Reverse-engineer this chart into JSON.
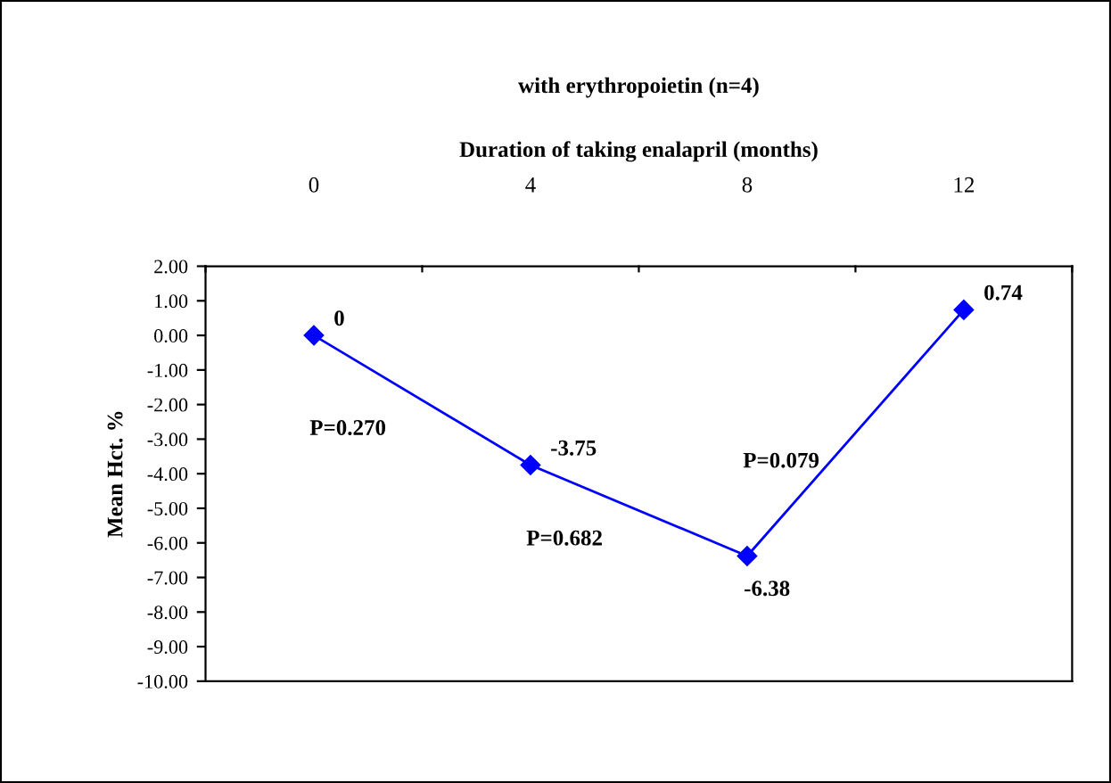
{
  "chart_data": {
    "type": "line",
    "title": "with erythropoietin (n=4)",
    "xlabel": "Duration of taking enalapril (months)",
    "ylabel": "Mean Hct. %",
    "categories": [
      "0",
      "4",
      "8",
      "12"
    ],
    "series": [
      {
        "color": "#0000ff",
        "values": [
          0,
          -3.75,
          -6.38,
          0.74
        ]
      }
    ],
    "ylim": [
      -10,
      2
    ],
    "yticks": [
      {
        "value": 2,
        "label": "2.00"
      },
      {
        "value": 1,
        "label": "1.00"
      },
      {
        "value": 0,
        "label": "0.00"
      },
      {
        "value": -1,
        "label": "-1.00"
      },
      {
        "value": -2,
        "label": "-2.00"
      },
      {
        "value": -3,
        "label": "-3.00"
      },
      {
        "value": -4,
        "label": "-4.00"
      },
      {
        "value": -5,
        "label": "-5.00"
      },
      {
        "value": -6,
        "label": "-6.00"
      },
      {
        "value": -7,
        "label": "-7.00"
      },
      {
        "value": -8,
        "label": "-8.00"
      },
      {
        "value": -9,
        "label": "-9.00"
      },
      {
        "value": -10,
        "label": "-10.00"
      }
    ],
    "annotations": [
      "P=0.270",
      "P=0.682",
      "P=0.079"
    ],
    "data_labels": true,
    "marker": "diamond",
    "line_style": "solid",
    "grid": false,
    "legend": false
  }
}
